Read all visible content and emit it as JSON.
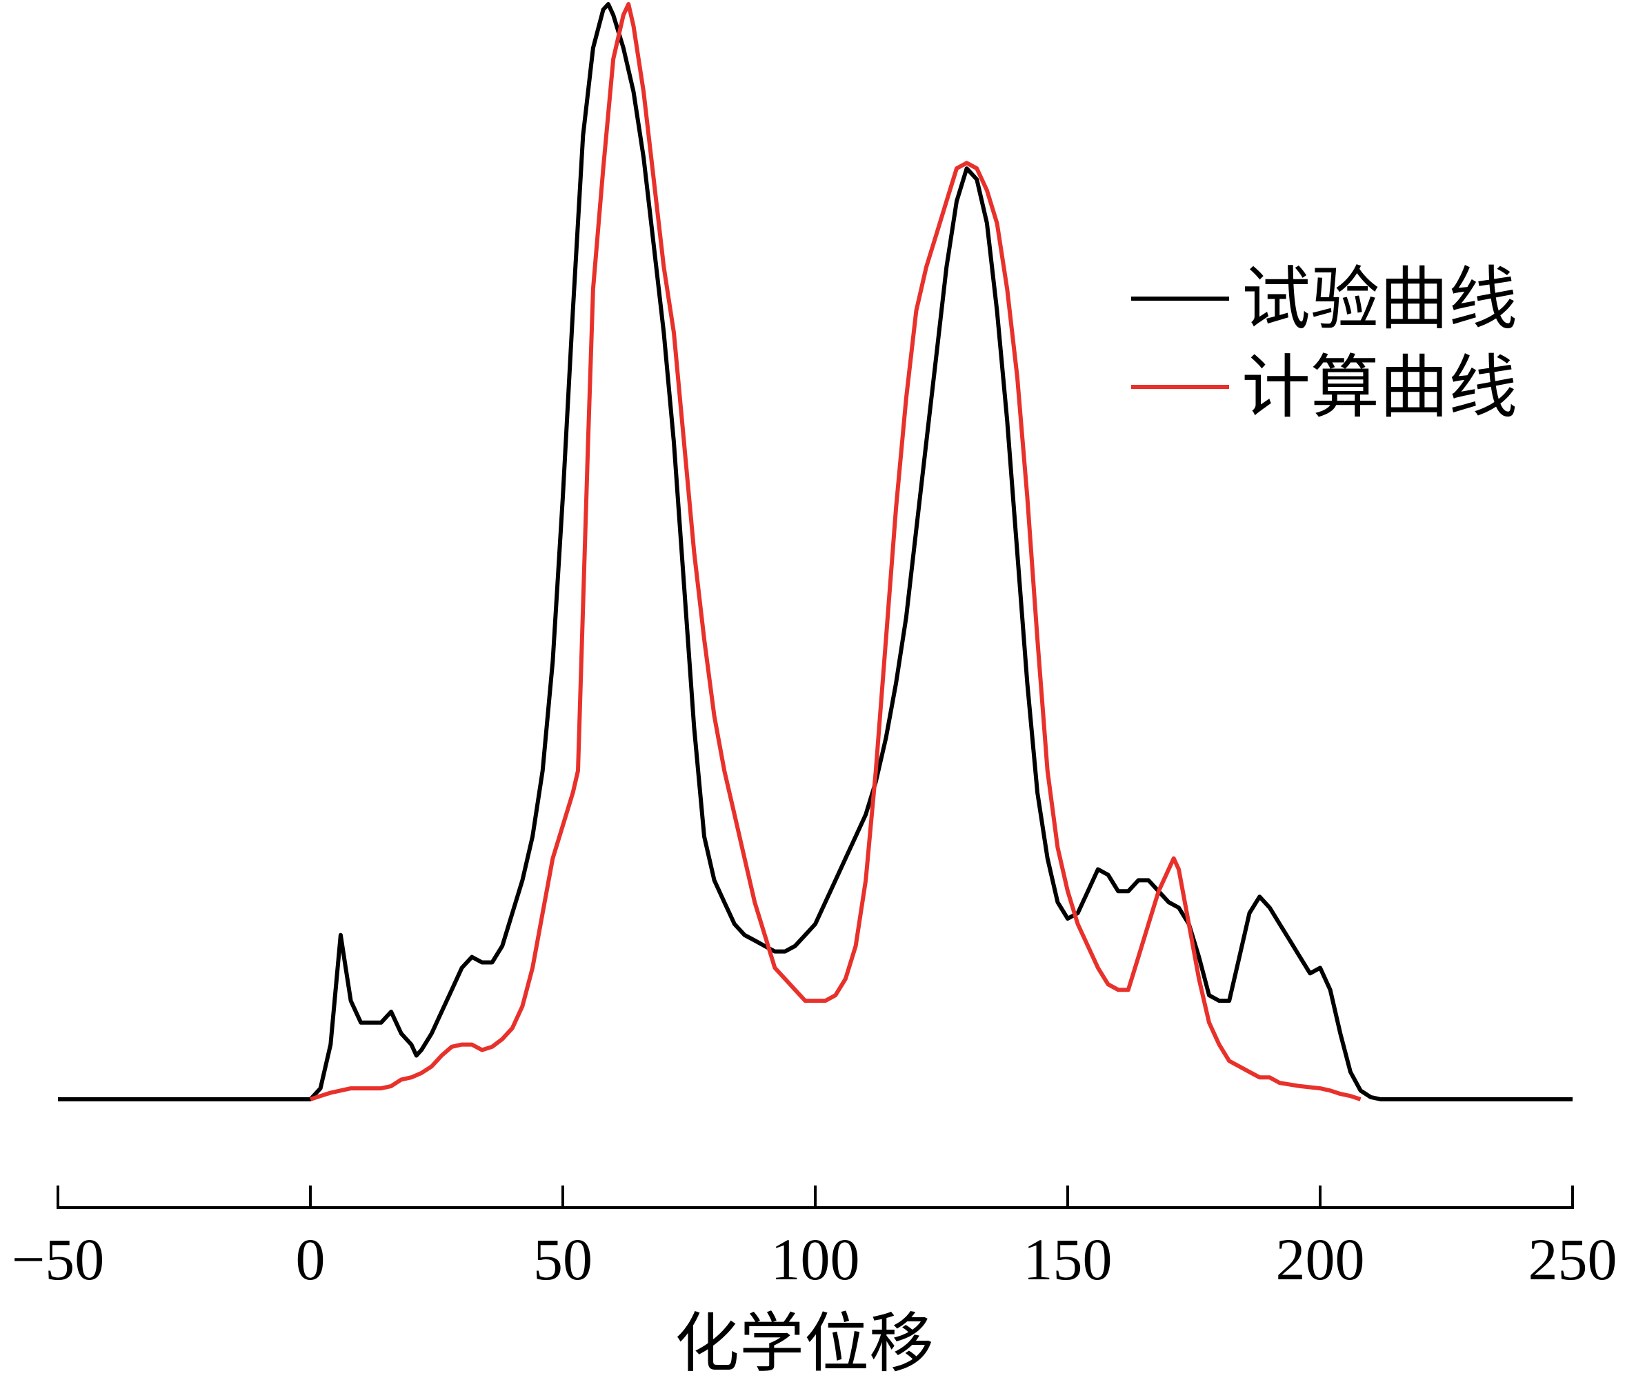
{
  "chart_data": {
    "type": "line",
    "xlabel": "化学位移",
    "ylabel": "",
    "xlim": [
      -50,
      250
    ],
    "xticks": [
      -50,
      0,
      50,
      100,
      150,
      200,
      250
    ],
    "xtick_labels": [
      "−50",
      "0",
      "50",
      "100",
      "150",
      "200",
      "250"
    ],
    "yaxis_visible": false,
    "grid": false,
    "legend_position": "upper-right",
    "series": [
      {
        "name": "试验曲线",
        "color": "#000000",
        "points": [
          [
            -50,
            0
          ],
          [
            0,
            0
          ],
          [
            2,
            0.01
          ],
          [
            4,
            0.05
          ],
          [
            5,
            0.1
          ],
          [
            6,
            0.15
          ],
          [
            7,
            0.12
          ],
          [
            8,
            0.09
          ],
          [
            10,
            0.07
          ],
          [
            12,
            0.07
          ],
          [
            14,
            0.07
          ],
          [
            16,
            0.08
          ],
          [
            18,
            0.06
          ],
          [
            20,
            0.05
          ],
          [
            21,
            0.04
          ],
          [
            22,
            0.045
          ],
          [
            24,
            0.06
          ],
          [
            26,
            0.08
          ],
          [
            28,
            0.1
          ],
          [
            30,
            0.12
          ],
          [
            32,
            0.13
          ],
          [
            34,
            0.125
          ],
          [
            36,
            0.125
          ],
          [
            38,
            0.14
          ],
          [
            40,
            0.17
          ],
          [
            42,
            0.2
          ],
          [
            44,
            0.24
          ],
          [
            46,
            0.3
          ],
          [
            48,
            0.4
          ],
          [
            50,
            0.55
          ],
          [
            52,
            0.72
          ],
          [
            54,
            0.88
          ],
          [
            56,
            0.96
          ],
          [
            58,
            0.995
          ],
          [
            59,
            1.0
          ],
          [
            60,
            0.99
          ],
          [
            62,
            0.96
          ],
          [
            64,
            0.92
          ],
          [
            66,
            0.86
          ],
          [
            68,
            0.78
          ],
          [
            70,
            0.7
          ],
          [
            72,
            0.6
          ],
          [
            74,
            0.47
          ],
          [
            76,
            0.34
          ],
          [
            78,
            0.24
          ],
          [
            80,
            0.2
          ],
          [
            82,
            0.18
          ],
          [
            84,
            0.16
          ],
          [
            86,
            0.15
          ],
          [
            88,
            0.145
          ],
          [
            90,
            0.14
          ],
          [
            92,
            0.135
          ],
          [
            94,
            0.135
          ],
          [
            96,
            0.14
          ],
          [
            98,
            0.15
          ],
          [
            100,
            0.16
          ],
          [
            102,
            0.18
          ],
          [
            104,
            0.2
          ],
          [
            106,
            0.22
          ],
          [
            108,
            0.24
          ],
          [
            110,
            0.26
          ],
          [
            112,
            0.29
          ],
          [
            114,
            0.33
          ],
          [
            116,
            0.38
          ],
          [
            118,
            0.44
          ],
          [
            120,
            0.52
          ],
          [
            122,
            0.6
          ],
          [
            124,
            0.68
          ],
          [
            126,
            0.76
          ],
          [
            128,
            0.82
          ],
          [
            130,
            0.85
          ],
          [
            132,
            0.84
          ],
          [
            134,
            0.8
          ],
          [
            136,
            0.72
          ],
          [
            138,
            0.62
          ],
          [
            140,
            0.5
          ],
          [
            142,
            0.38
          ],
          [
            144,
            0.28
          ],
          [
            146,
            0.22
          ],
          [
            148,
            0.18
          ],
          [
            150,
            0.165
          ],
          [
            152,
            0.17
          ],
          [
            154,
            0.19
          ],
          [
            156,
            0.21
          ],
          [
            158,
            0.205
          ],
          [
            160,
            0.19
          ],
          [
            162,
            0.19
          ],
          [
            164,
            0.2
          ],
          [
            166,
            0.2
          ],
          [
            168,
            0.19
          ],
          [
            170,
            0.18
          ],
          [
            172,
            0.175
          ],
          [
            174,
            0.16
          ],
          [
            176,
            0.13
          ],
          [
            178,
            0.095
          ],
          [
            180,
            0.09
          ],
          [
            182,
            0.09
          ],
          [
            184,
            0.13
          ],
          [
            186,
            0.17
          ],
          [
            188,
            0.185
          ],
          [
            190,
            0.175
          ],
          [
            192,
            0.16
          ],
          [
            194,
            0.145
          ],
          [
            196,
            0.13
          ],
          [
            198,
            0.115
          ],
          [
            200,
            0.12
          ],
          [
            202,
            0.1
          ],
          [
            204,
            0.06
          ],
          [
            206,
            0.025
          ],
          [
            208,
            0.008
          ],
          [
            210,
            0.002
          ],
          [
            212,
            0
          ],
          [
            250,
            0
          ]
        ]
      },
      {
        "name": "计算曲线",
        "color": "#e8312b",
        "points": [
          [
            0,
            0
          ],
          [
            2,
            0.003
          ],
          [
            4,
            0.006
          ],
          [
            6,
            0.008
          ],
          [
            8,
            0.01
          ],
          [
            10,
            0.01
          ],
          [
            14,
            0.01
          ],
          [
            16,
            0.012
          ],
          [
            18,
            0.018
          ],
          [
            20,
            0.02
          ],
          [
            22,
            0.024
          ],
          [
            24,
            0.03
          ],
          [
            26,
            0.04
          ],
          [
            28,
            0.048
          ],
          [
            30,
            0.05
          ],
          [
            32,
            0.05
          ],
          [
            34,
            0.045
          ],
          [
            36,
            0.048
          ],
          [
            38,
            0.055
          ],
          [
            40,
            0.065
          ],
          [
            42,
            0.085
          ],
          [
            44,
            0.12
          ],
          [
            46,
            0.17
          ],
          [
            48,
            0.22
          ],
          [
            50,
            0.25
          ],
          [
            52,
            0.28
          ],
          [
            53,
            0.3
          ],
          [
            54,
            0.45
          ],
          [
            55,
            0.6
          ],
          [
            56,
            0.74
          ],
          [
            58,
            0.85
          ],
          [
            60,
            0.95
          ],
          [
            62,
            0.99
          ],
          [
            63,
            1.0
          ],
          [
            64,
            0.98
          ],
          [
            66,
            0.92
          ],
          [
            68,
            0.84
          ],
          [
            70,
            0.76
          ],
          [
            72,
            0.7
          ],
          [
            74,
            0.6
          ],
          [
            76,
            0.5
          ],
          [
            78,
            0.42
          ],
          [
            80,
            0.35
          ],
          [
            82,
            0.3
          ],
          [
            84,
            0.26
          ],
          [
            86,
            0.22
          ],
          [
            88,
            0.18
          ],
          [
            90,
            0.15
          ],
          [
            92,
            0.12
          ],
          [
            94,
            0.11
          ],
          [
            96,
            0.1
          ],
          [
            98,
            0.09
          ],
          [
            100,
            0.09
          ],
          [
            102,
            0.09
          ],
          [
            104,
            0.095
          ],
          [
            106,
            0.11
          ],
          [
            108,
            0.14
          ],
          [
            110,
            0.2
          ],
          [
            112,
            0.3
          ],
          [
            114,
            0.42
          ],
          [
            116,
            0.54
          ],
          [
            118,
            0.64
          ],
          [
            120,
            0.72
          ],
          [
            122,
            0.76
          ],
          [
            124,
            0.79
          ],
          [
            126,
            0.82
          ],
          [
            128,
            0.85
          ],
          [
            130,
            0.855
          ],
          [
            132,
            0.85
          ],
          [
            134,
            0.83
          ],
          [
            136,
            0.8
          ],
          [
            138,
            0.74
          ],
          [
            140,
            0.66
          ],
          [
            142,
            0.55
          ],
          [
            144,
            0.42
          ],
          [
            146,
            0.3
          ],
          [
            148,
            0.23
          ],
          [
            150,
            0.19
          ],
          [
            152,
            0.16
          ],
          [
            154,
            0.14
          ],
          [
            156,
            0.12
          ],
          [
            158,
            0.105
          ],
          [
            160,
            0.1
          ],
          [
            162,
            0.1
          ],
          [
            164,
            0.13
          ],
          [
            166,
            0.16
          ],
          [
            168,
            0.19
          ],
          [
            170,
            0.21
          ],
          [
            171,
            0.22
          ],
          [
            172,
            0.21
          ],
          [
            174,
            0.16
          ],
          [
            176,
            0.11
          ],
          [
            178,
            0.07
          ],
          [
            180,
            0.05
          ],
          [
            182,
            0.035
          ],
          [
            184,
            0.03
          ],
          [
            186,
            0.025
          ],
          [
            188,
            0.02
          ],
          [
            190,
            0.02
          ],
          [
            192,
            0.015
          ],
          [
            196,
            0.012
          ],
          [
            200,
            0.01
          ],
          [
            202,
            0.008
          ],
          [
            204,
            0.005
          ],
          [
            206,
            0.003
          ],
          [
            208,
            0
          ]
        ]
      }
    ]
  }
}
